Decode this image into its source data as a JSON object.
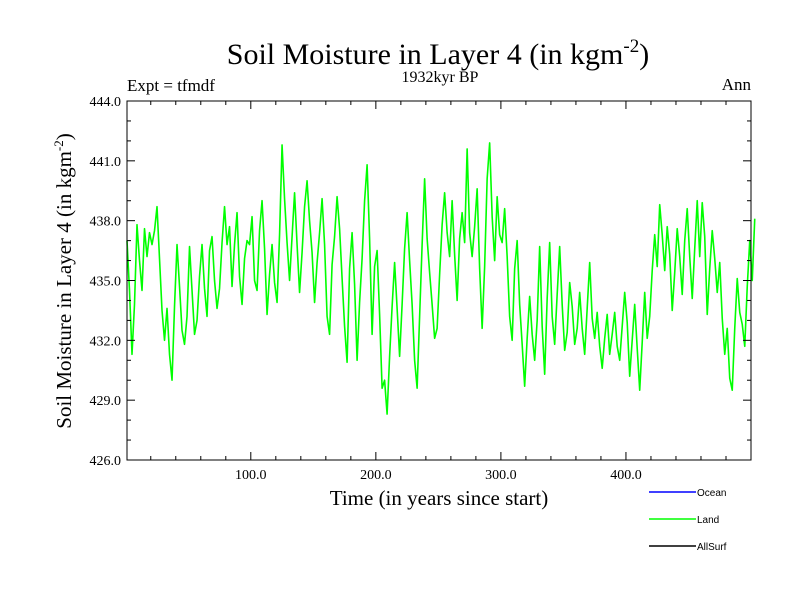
{
  "chart_data": {
    "type": "line",
    "title_main": "Soil Moisture in Layer 4 (in kgm",
    "title_sup": "-2",
    "title_close": ")",
    "subtitle": "1932kyr BP",
    "left_label": "Expt = tfmdf",
    "right_label": "Ann",
    "xlabel": "Time (in years since start)",
    "ylabel_main": "Soil Moisture in Layer 4 (in kgm",
    "ylabel_sup": "-2",
    "ylabel_close": ")",
    "xlim": [
      1,
      500
    ],
    "ylim": [
      426.0,
      444.0
    ],
    "x_ticks": [
      {
        "value": 100,
        "label": "100.0"
      },
      {
        "value": 200,
        "label": "200.0"
      },
      {
        "value": 300,
        "label": "300.0"
      },
      {
        "value": 400,
        "label": "400.0"
      }
    ],
    "y_ticks": [
      {
        "value": 426.0,
        "label": "426.0"
      },
      {
        "value": 429.0,
        "label": "429.0"
      },
      {
        "value": 432.0,
        "label": "432.0"
      },
      {
        "value": 435.0,
        "label": "435.0"
      },
      {
        "value": 438.0,
        "label": "438.0"
      },
      {
        "value": 441.0,
        "label": "441.0"
      },
      {
        "value": 444.0,
        "label": "444.0"
      }
    ],
    "legend": [
      {
        "name": "Ocean",
        "color": "#0000ff"
      },
      {
        "name": "Land",
        "color": "#00ff00"
      },
      {
        "name": "AllSurf",
        "color": "#000000"
      }
    ],
    "series": [
      {
        "name": "Land",
        "color": "#00ff00",
        "x_start": 1,
        "x_step": 2,
        "values": [
          437.0,
          434.5,
          431.3,
          433.8,
          437.8,
          436.0,
          434.5,
          437.6,
          436.2,
          437.4,
          436.8,
          437.5,
          438.7,
          436.1,
          433.5,
          432.0,
          433.6,
          431.3,
          430.0,
          433.7,
          436.8,
          434.7,
          432.5,
          431.8,
          433.2,
          436.7,
          434.5,
          432.3,
          433.0,
          435.2,
          436.8,
          434.6,
          433.2,
          436.5,
          437.2,
          435.0,
          433.6,
          434.6,
          436.9,
          438.7,
          436.8,
          437.7,
          434.7,
          436.8,
          438.4,
          435.2,
          433.8,
          436.1,
          437.0,
          436.8,
          438.2,
          435.0,
          434.5,
          437.5,
          439.0,
          436.6,
          433.3,
          435.3,
          436.8,
          434.9,
          433.9,
          437.3,
          441.8,
          439.1,
          436.9,
          435.0,
          437.2,
          439.4,
          436.8,
          434.4,
          436.4,
          438.7,
          440.0,
          438.0,
          436.4,
          433.9,
          435.9,
          437.4,
          439.1,
          436.8,
          433.2,
          432.3,
          435.8,
          437.2,
          439.2,
          437.6,
          435.1,
          432.7,
          430.9,
          435.6,
          437.4,
          434.8,
          431.0,
          433.9,
          436.1,
          439.0,
          440.8,
          437.1,
          432.3,
          435.7,
          436.5,
          433.3,
          429.6,
          430.0,
          428.3,
          431.2,
          433.7,
          435.9,
          433.6,
          431.2,
          433.8,
          436.6,
          438.4,
          436.0,
          433.8,
          431.0,
          429.6,
          433.2,
          436.8,
          440.1,
          437.1,
          435.4,
          433.8,
          432.1,
          432.6,
          435.3,
          437.8,
          439.4,
          437.4,
          436.2,
          439.0,
          436.3,
          434.0,
          437.1,
          438.4,
          436.9,
          441.6,
          437.4,
          436.2,
          437.7,
          439.6,
          435.6,
          432.6,
          435.7,
          440.1,
          441.9,
          438.2,
          436.0,
          439.2,
          437.3,
          436.9,
          438.6,
          436.2,
          433.2,
          432.0,
          435.6,
          437.0,
          433.8,
          431.8,
          429.7,
          432.1,
          434.2,
          432.3,
          431.0,
          433.0,
          436.7,
          432.7,
          430.3,
          434.1,
          436.9,
          433.2,
          431.8,
          434.3,
          436.7,
          433.8,
          431.5,
          432.4,
          434.9,
          433.7,
          431.8,
          432.6,
          434.4,
          432.6,
          431.3,
          433.6,
          435.9,
          433.1,
          432.1,
          433.4,
          431.7,
          430.6,
          432.1,
          433.3,
          431.3,
          432.3,
          433.4,
          431.7,
          431.0,
          432.7,
          434.4,
          432.9,
          430.2,
          432.0,
          433.8,
          431.6,
          429.5,
          431.9,
          434.4,
          432.1,
          433.2,
          435.5,
          437.3,
          435.7,
          438.8,
          437.3,
          435.5,
          437.7,
          436.3,
          433.5,
          435.4,
          437.6,
          436.2,
          434.3,
          437.0,
          438.6,
          436.2,
          434.1,
          436.6,
          439.0,
          436.2,
          438.9,
          437.2,
          433.3,
          435.6,
          437.5,
          436.1,
          434.4,
          435.9,
          433.1,
          431.3,
          432.6,
          430.1,
          429.5,
          432.6,
          435.1,
          433.4,
          432.8,
          431.7,
          434.7,
          437.0,
          435.0,
          438.1
        ]
      }
    ]
  }
}
